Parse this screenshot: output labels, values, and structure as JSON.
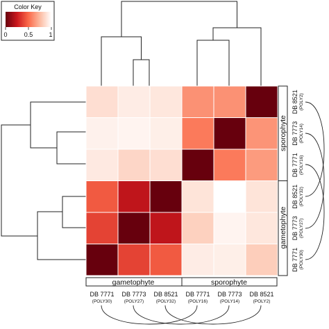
{
  "chart_data": {
    "type": "heatmap",
    "color_key": {
      "title": "Color Key",
      "ticks": [
        "0",
        "0.5",
        "1"
      ],
      "low_color": "#67000d",
      "high_color": "#ffffff"
    },
    "columns": [
      {
        "label": "DB 7771",
        "sub": "(POLY30)"
      },
      {
        "label": "DB 7773",
        "sub": "(POLY27)"
      },
      {
        "label": "DB 8521",
        "sub": "(POLY32)"
      },
      {
        "label": "DB 7771",
        "sub": "(POLY16)"
      },
      {
        "label": "DB 7773",
        "sub": "(POLY14)"
      },
      {
        "label": "DB 8521",
        "sub": "(POLY2)"
      }
    ],
    "rows": [
      {
        "label": "DB 8521",
        "sub": "(POLY2)"
      },
      {
        "label": "DB 7773",
        "sub": "(POLY14)"
      },
      {
        "label": "DB 7771",
        "sub": "(POLY16)"
      },
      {
        "label": "DB 8521",
        "sub": "(POLY32)"
      },
      {
        "label": "DB 7773",
        "sub": "(POLY27)"
      },
      {
        "label": "DB 7771",
        "sub": "(POLY30)"
      }
    ],
    "values": [
      [
        0.88,
        0.93,
        0.91,
        0.62,
        0.62,
        0.0
      ],
      [
        0.95,
        0.96,
        0.94,
        0.55,
        0.0,
        0.63
      ],
      [
        0.92,
        0.85,
        0.88,
        0.0,
        0.55,
        0.65
      ],
      [
        0.45,
        0.22,
        0.0,
        0.9,
        1.0,
        0.9
      ],
      [
        0.38,
        0.0,
        0.22,
        0.83,
        0.96,
        0.91
      ],
      [
        0.0,
        0.38,
        0.45,
        0.93,
        0.94,
        0.82
      ]
    ],
    "column_groups": [
      {
        "label": "gametophyte",
        "span": [
          0,
          2
        ]
      },
      {
        "label": "sporophyte",
        "span": [
          3,
          5
        ]
      }
    ],
    "row_groups": [
      {
        "label": "sporophyte",
        "span": [
          0,
          2
        ]
      },
      {
        "label": "gametophyte",
        "span": [
          3,
          5
        ]
      }
    ],
    "grid": true
  }
}
